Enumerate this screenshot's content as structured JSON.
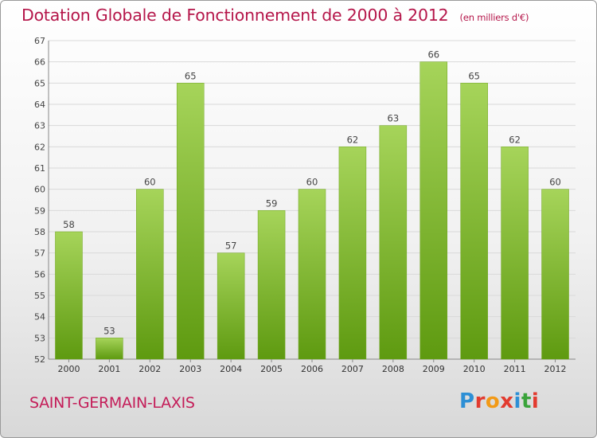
{
  "header": {
    "title": "Dotation Globale de Fonctionnement de 2000 à 2012",
    "unit": "(en milliers d'€)"
  },
  "footer": {
    "commune": "SAINT-GERMAIN-LAXIS",
    "logo_text": "Proxiti"
  },
  "colors": {
    "title": "#b5164a",
    "bar_top": "#a6d45a",
    "bar_bottom": "#5e9a10",
    "grid": "#d9d9d9"
  },
  "chart_data": {
    "type": "bar",
    "title": "Dotation Globale de Fonctionnement de 2000 à 2012",
    "unit": "(en milliers d'€)",
    "categories": [
      "2000",
      "2001",
      "2002",
      "2003",
      "2004",
      "2005",
      "2006",
      "2007",
      "2008",
      "2009",
      "2010",
      "2011",
      "2012"
    ],
    "values": [
      58,
      53,
      60,
      65,
      57,
      59,
      60,
      62,
      63,
      66,
      65,
      62,
      60
    ],
    "ylim": [
      52,
      67
    ],
    "yticks": [
      52,
      53,
      54,
      55,
      56,
      57,
      58,
      59,
      60,
      61,
      62,
      63,
      64,
      65,
      66,
      67
    ],
    "grid": true,
    "data_labels": true
  }
}
